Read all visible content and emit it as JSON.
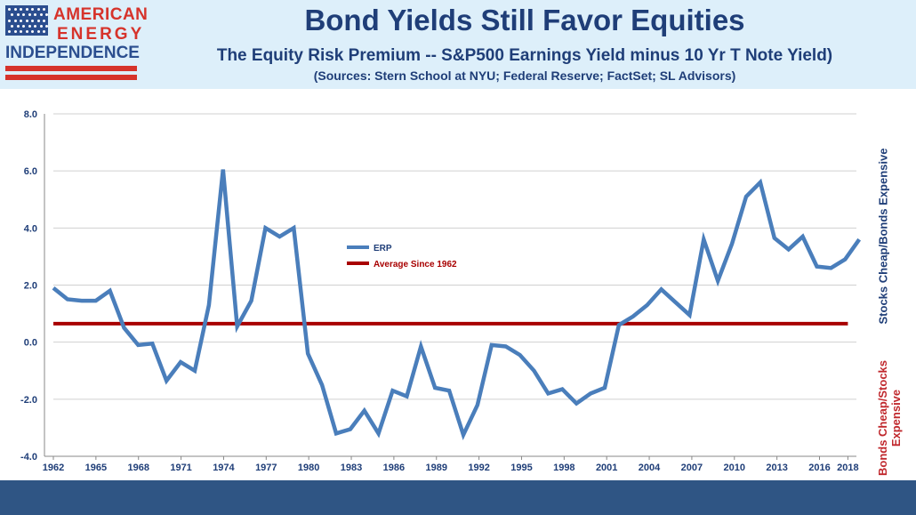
{
  "logo": {
    "line1": "AMERICAN",
    "line2": "ENERGY",
    "line3": "INDEPENDENCE"
  },
  "header": {
    "title": "Bond Yields Still Favor Equities",
    "subtitle": "The Equity Risk Premium -- S&P500 Earnings Yield minus 10 Yr T Note Yield)",
    "source": "(Sources: Stern School at NYU; Federal Reserve; FactSet; SL Advisors)"
  },
  "side_labels": {
    "upper": "Stocks Cheap/Bonds Expensive",
    "lower_1": "Bonds Cheap/Stocks",
    "lower_2": "Expensive"
  },
  "colors": {
    "erp": "#4a7ebb",
    "average": "#a80000",
    "upper_label": "#1f3e78",
    "lower_label": "#c0282d",
    "header_bg": "#ddeffa",
    "footer_bg": "#2f5584"
  },
  "chart_data": {
    "type": "line",
    "xlabel": "",
    "ylabel": "",
    "ylim": [
      -4.0,
      8.0
    ],
    "y_ticks": [
      "8.0",
      "6.0",
      "4.0",
      "2.0",
      "0.0",
      "-2.0",
      "-4.0"
    ],
    "x_ticks": [
      "1962",
      "1965",
      "1968",
      "1971",
      "1974",
      "1977",
      "1980",
      "1983",
      "1986",
      "1989",
      "1992",
      "1995",
      "1998",
      "2001",
      "2004",
      "2007",
      "2010",
      "2013",
      "2016",
      "2018"
    ],
    "grid": true,
    "legend_position": "center-left",
    "x": [
      1962,
      1963,
      1964,
      1965,
      1966,
      1967,
      1968,
      1969,
      1970,
      1971,
      1972,
      1973,
      1974,
      1975,
      1976,
      1977,
      1978,
      1979,
      1980,
      1981,
      1982,
      1983,
      1984,
      1985,
      1986,
      1987,
      1988,
      1989,
      1990,
      1991,
      1992,
      1993,
      1994,
      1995,
      1996,
      1997,
      1998,
      1999,
      2000,
      2001,
      2002,
      2003,
      2004,
      2005,
      2006,
      2007,
      2008,
      2009,
      2010,
      2011,
      2012,
      2013,
      2014,
      2015,
      2016,
      2017,
      2018,
      2019
    ],
    "series": [
      {
        "name": "ERP",
        "values": [
          1.9,
          1.5,
          1.45,
          1.45,
          1.8,
          0.5,
          -0.1,
          -0.05,
          -1.35,
          -0.7,
          -1.0,
          1.3,
          6.05,
          0.55,
          1.45,
          4.0,
          3.7,
          4.0,
          -0.4,
          -1.5,
          -3.2,
          -3.05,
          -2.4,
          -3.2,
          -1.7,
          -1.9,
          -0.15,
          -1.6,
          -1.7,
          -3.25,
          -2.2,
          -0.1,
          -0.15,
          -0.45,
          -1.0,
          -1.8,
          -1.65,
          -2.15,
          -1.8,
          -1.6,
          0.6,
          0.9,
          1.3,
          1.85,
          1.4,
          0.95,
          3.6,
          2.15,
          3.45,
          5.1,
          5.6,
          3.65,
          3.25,
          3.7,
          2.65,
          2.6,
          2.9,
          3.6
        ]
      },
      {
        "name": "Average Since 1962",
        "values": [
          0.65,
          0.65
        ],
        "x": [
          1962,
          2018
        ]
      }
    ]
  }
}
